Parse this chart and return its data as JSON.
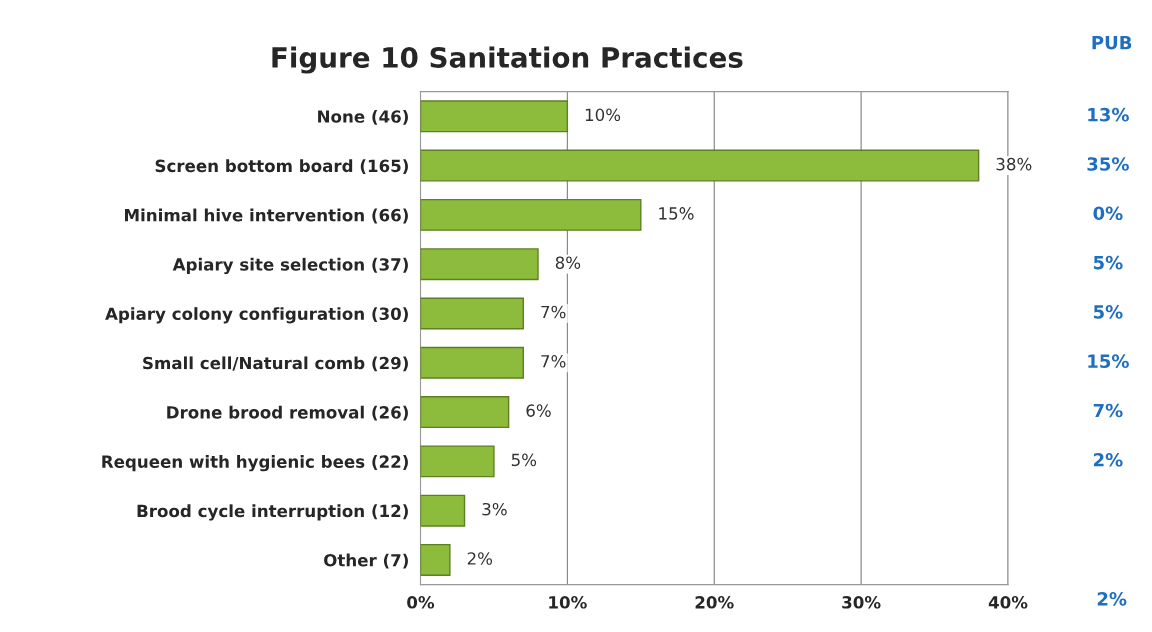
{
  "chart_data": {
    "type": "bar",
    "orientation": "horizontal",
    "title": "Figure 10 Sanitation Practices",
    "categories": [
      "None (46)",
      "Screen bottom board (165)",
      "Minimal hive intervention (66)",
      "Apiary site selection (37)",
      "Apiary colony configuration (30)",
      "Small cell/Natural comb (29)",
      "Drone brood removal (26)",
      "Requeen with hygienic bees (22)",
      "Brood cycle interruption (12)",
      "Other (7)"
    ],
    "values": [
      10,
      38,
      15,
      8,
      7,
      7,
      6,
      5,
      3,
      2
    ],
    "value_labels": [
      "10%",
      "38%",
      "15%",
      "8%",
      "7%",
      "7%",
      "6%",
      "5%",
      "3%",
      "2%"
    ],
    "color": "#8dbb3c",
    "xlim": [
      0,
      40
    ],
    "xticks": [
      {
        "value": 0,
        "label": "0%"
      },
      {
        "value": 10,
        "label": "10%"
      },
      {
        "value": 20,
        "label": "20%"
      },
      {
        "value": 30,
        "label": "30%"
      },
      {
        "value": 40,
        "label": "40%"
      }
    ],
    "grid": "x",
    "annotations": [
      "PUB",
      "13%",
      "35%",
      "0%",
      "5%",
      "5%",
      "15%",
      "7%",
      "2%",
      "2%"
    ]
  }
}
